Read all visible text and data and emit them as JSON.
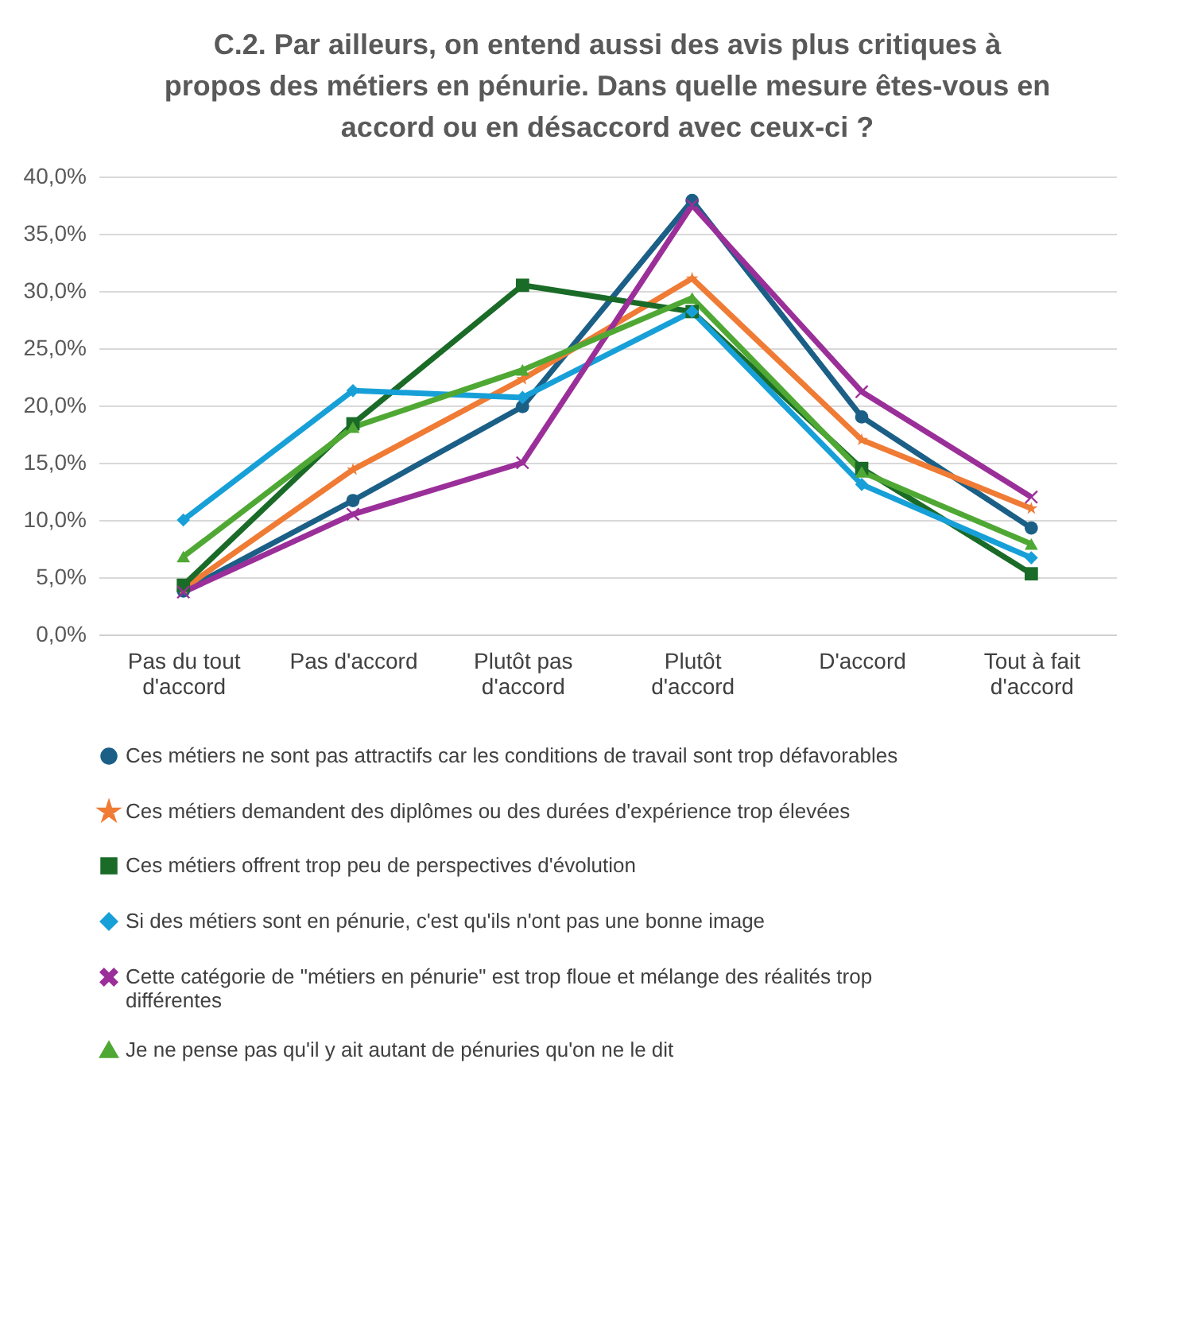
{
  "chart_data": {
    "type": "line",
    "title": "C.2. Par ailleurs, on entend aussi des avis plus critiques à propos des métiers en pénurie. Dans quelle mesure êtes-vous en accord ou en désaccord avec ceux-ci ?",
    "categories": [
      "Pas du tout d'accord",
      "Pas d'accord",
      "Plutôt pas d'accord",
      "Plutôt d'accord",
      "D'accord",
      "Tout à fait d'accord"
    ],
    "ylim": [
      0,
      40
    ],
    "yticks": [
      {
        "value": 0,
        "label": "0,0%"
      },
      {
        "value": 5,
        "label": "5,0%"
      },
      {
        "value": 10,
        "label": "10,0%"
      },
      {
        "value": 15,
        "label": "15,0%"
      },
      {
        "value": 20,
        "label": "20,0%"
      },
      {
        "value": 25,
        "label": "25,0%"
      },
      {
        "value": 30,
        "label": "30,0%"
      },
      {
        "value": 35,
        "label": "35,0%"
      },
      {
        "value": 40,
        "label": "40,0%"
      }
    ],
    "grid": "y",
    "legend": "bottom",
    "line_style": "solid",
    "series": [
      {
        "name": "Ces métiers ne sont pas attractifs car les conditions de travail sont trop défavorables",
        "color": "#1b5f87",
        "marker": "circle",
        "values": [
          3.8,
          11.7,
          19.9,
          37.9,
          19.0,
          9.3
        ]
      },
      {
        "name": "Ces métiers demandent des diplômes ou des durées d'expérience trop élevées",
        "color": "#ef7b35",
        "marker": "star",
        "values": [
          4.0,
          14.4,
          22.3,
          31.1,
          17.0,
          11.0
        ]
      },
      {
        "name": "Ces métiers offrent trop peu de perspectives d'évolution",
        "color": "#1a6b27",
        "marker": "square",
        "values": [
          4.3,
          18.4,
          30.5,
          28.2,
          14.5,
          5.3
        ]
      },
      {
        "name": "Si des métiers sont en pénurie, c'est qu'ils n'ont pas une bonne image",
        "color": "#17a0d8",
        "marker": "diamond",
        "values": [
          10.0,
          21.3,
          20.7,
          28.2,
          13.1,
          6.7
        ]
      },
      {
        "name": "Cette catégorie de \"métiers en pénurie\" est trop floue et mélange des réalités trop différentes",
        "color": "#9b2f99",
        "marker": "cross",
        "values": [
          3.7,
          10.5,
          15.0,
          37.5,
          21.2,
          12.0
        ]
      },
      {
        "name": "Je ne pense pas qu'il y ait autant de pénuries qu'on ne le dit",
        "color": "#4fa834",
        "marker": "triangle",
        "values": [
          6.8,
          18.1,
          23.1,
          29.4,
          14.2,
          7.9
        ]
      }
    ]
  }
}
